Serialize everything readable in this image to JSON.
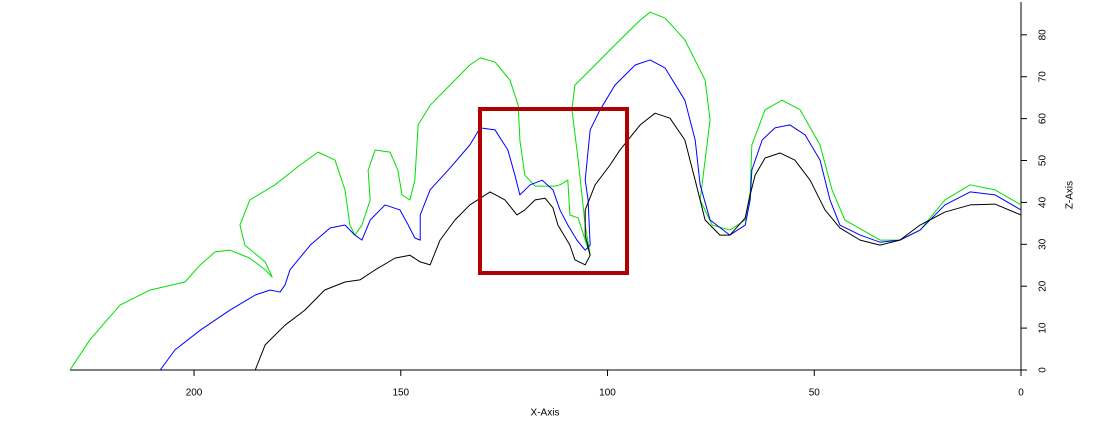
{
  "chart_data": {
    "type": "line",
    "x_label": "X-Axis",
    "y_label": "Z-Axis",
    "xlim": [
      230,
      0
    ],
    "xticks": [
      200,
      150,
      100,
      50,
      0
    ],
    "ylim": [
      0,
      88
    ],
    "yticks": [
      0,
      10,
      20,
      30,
      40,
      50,
      60,
      70,
      80
    ],
    "series": [
      {
        "color": "#00e000",
        "x": [
          230,
          225.2,
          217.9,
          210.6,
          202.2,
          198.5,
          194.9,
          191.3,
          186.5,
          182.8,
          181.1,
          182.8,
          187.7,
          188.9,
          186.5,
          180.4,
          174.4,
          170,
          165.9,
          163.5,
          162.3,
          161.1,
          159.4,
          157.4,
          157.9,
          156.2,
          152.6,
          150.7,
          149.7,
          147.8,
          146.6,
          145.8,
          142.9,
          138.1,
          133.3,
          130.8,
          127.2,
          123.6,
          121.6,
          121.2,
          120,
          117.5,
          112.7,
          111.5,
          109.6,
          109.1,
          107.1,
          105.4,
          104.2,
          105.4,
          107.1,
          108.6,
          107.9,
          104.2,
          98.2,
          92.1,
          89.7,
          86.1,
          81.3,
          76.4,
          75.2,
          76.4,
          77.6,
          74.7,
          70.4,
          66.7,
          65.5,
          65.1,
          61.9,
          57.8,
          53.4,
          48.6,
          45.7,
          42.6,
          34.1,
          29.3,
          24.4,
          18.4,
          12.3,
          6.3,
          0
        ],
        "values": [
          0,
          7.2,
          15.5,
          19.1,
          21,
          25.1,
          28.2,
          28.6,
          26.7,
          23.9,
          22.2,
          25.8,
          29.8,
          34.6,
          40.6,
          44.2,
          48.9,
          52,
          50.1,
          43,
          34.6,
          32.2,
          34.6,
          40.6,
          47.7,
          52.5,
          52,
          47.7,
          41.8,
          40.6,
          45.3,
          58.5,
          63.2,
          68,
          72.8,
          74.5,
          73.5,
          69.2,
          63.2,
          54.9,
          46.5,
          43.9,
          43.9,
          44.2,
          45.3,
          37,
          36.3,
          31,
          27.4,
          34.6,
          50.1,
          62.1,
          68,
          71.6,
          77.6,
          83.5,
          85.4,
          84,
          78.8,
          69.2,
          59.7,
          50.1,
          40.6,
          34.6,
          33.4,
          35.8,
          42.5,
          53.7,
          62.1,
          64.4,
          62.1,
          53.7,
          43,
          35.8,
          31,
          31,
          33.4,
          40.6,
          44.2,
          43,
          39.4
        ]
      },
      {
        "color": "#0000ff",
        "x": [
          208.2,
          204.6,
          198.5,
          191.3,
          185.2,
          181.6,
          179.2,
          178,
          176.8,
          171.9,
          167.1,
          163.5,
          161.1,
          159.4,
          157.4,
          153.8,
          150.2,
          148.2,
          146.6,
          145.3,
          145.3,
          142.9,
          138.1,
          133.3,
          130.8,
          127.2,
          124.1,
          122.4,
          121.2,
          118.7,
          115.8,
          113.2,
          111.5,
          109.6,
          107.4,
          105.4,
          104.2,
          104.7,
          105.4,
          104.2,
          101.8,
          98.2,
          93.3,
          89.7,
          86.1,
          81.3,
          78.8,
          77.6,
          75.2,
          70.4,
          66.7,
          65.5,
          65.1,
          62.6,
          59.5,
          55.9,
          52.2,
          48.6,
          46.2,
          43.8,
          38.9,
          34.1,
          29.3,
          24.4,
          18.4,
          12.3,
          6.3,
          0
        ],
        "values": [
          0,
          4.8,
          9.5,
          14.3,
          17.9,
          19.1,
          18.6,
          20.3,
          23.9,
          29.8,
          33.9,
          34.6,
          32.2,
          31,
          35.8,
          39.4,
          38.2,
          34.6,
          31.5,
          31,
          37,
          43,
          48.2,
          53.7,
          57.8,
          57.3,
          52.5,
          46.5,
          41.8,
          44.2,
          45.3,
          43,
          38.2,
          34.6,
          31,
          28.6,
          29.8,
          40.6,
          45.3,
          57.3,
          62.1,
          68,
          72.8,
          74,
          72.1,
          64.4,
          54.9,
          44.2,
          35.8,
          32.2,
          34.6,
          40.6,
          47.7,
          54.9,
          57.8,
          58.5,
          56.1,
          50.1,
          40.6,
          34.6,
          32.2,
          30.5,
          31,
          33.4,
          39.4,
          42.5,
          41.8,
          38.2
        ]
      },
      {
        "color": "#000000",
        "x": [
          185.2,
          182.8,
          178,
          173.2,
          168.4,
          163.5,
          159.9,
          156.2,
          151.4,
          147.8,
          145.3,
          142.9,
          140.5,
          136.9,
          133.3,
          128.4,
          124.8,
          121.9,
          120,
          117.5,
          115.1,
          113.2,
          112,
          109.1,
          107.9,
          105.4,
          104.2,
          105.4,
          105.4,
          103,
          99.4,
          97,
          92.1,
          88.5,
          84.9,
          81.3,
          78.8,
          76.4,
          72.8,
          70.4,
          66.7,
          65.5,
          64.3,
          61.9,
          58.3,
          54.7,
          51,
          47.4,
          43.8,
          38.9,
          34.1,
          29.3,
          24.4,
          18.4,
          12.3,
          6.3,
          0
        ],
        "values": [
          0,
          6,
          10.7,
          14.3,
          19.1,
          21,
          21.5,
          23.9,
          26.7,
          27.4,
          25.8,
          25.1,
          31,
          35.8,
          39.4,
          42.5,
          40.6,
          37,
          38.2,
          40.6,
          41,
          38.7,
          34.6,
          29.8,
          26.3,
          25.1,
          27.4,
          32.2,
          38.2,
          44.2,
          48.9,
          52.5,
          58.5,
          61.3,
          60.1,
          54.9,
          45.3,
          35.8,
          32.2,
          32.2,
          36.3,
          41.8,
          46.5,
          50.6,
          51.8,
          50.1,
          45.3,
          38.2,
          33.9,
          31,
          29.8,
          31,
          34.6,
          37.7,
          39.4,
          39.6,
          37
        ]
      }
    ]
  }
}
